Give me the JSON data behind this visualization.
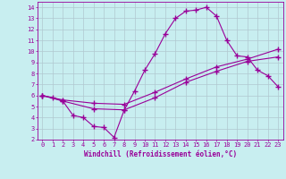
{
  "xlabel": "Windchill (Refroidissement éolien,°C)",
  "bg_color": "#c8eef0",
  "grid_color": "#b0c8d0",
  "line_color": "#990099",
  "xlim": [
    -0.5,
    23.5
  ],
  "ylim": [
    2,
    14.5
  ],
  "xticks": [
    0,
    1,
    2,
    3,
    4,
    5,
    6,
    7,
    8,
    9,
    10,
    11,
    12,
    13,
    14,
    15,
    16,
    17,
    18,
    19,
    20,
    21,
    22,
    23
  ],
  "yticks": [
    2,
    3,
    4,
    5,
    6,
    7,
    8,
    9,
    10,
    11,
    12,
    13,
    14
  ],
  "line1_x": [
    0,
    1,
    2,
    3,
    4,
    5,
    6,
    7,
    8,
    9,
    10,
    11,
    12,
    13,
    14,
    15,
    16,
    17,
    18,
    19,
    20,
    21,
    22,
    23
  ],
  "line1_y": [
    6.0,
    5.8,
    5.5,
    4.2,
    4.0,
    3.2,
    3.1,
    2.2,
    4.7,
    6.4,
    8.3,
    9.8,
    11.6,
    13.0,
    13.65,
    13.75,
    14.0,
    13.2,
    11.0,
    9.6,
    9.5,
    8.3,
    7.8,
    6.8
  ],
  "line2_x": [
    0,
    2,
    5,
    8,
    11,
    14,
    17,
    20,
    23
  ],
  "line2_y": [
    6.0,
    5.6,
    5.3,
    5.2,
    6.3,
    7.5,
    8.6,
    9.3,
    10.2
  ],
  "line3_x": [
    0,
    2,
    5,
    8,
    11,
    14,
    17,
    20,
    23
  ],
  "line3_y": [
    6.0,
    5.5,
    4.8,
    4.7,
    5.8,
    7.2,
    8.2,
    9.1,
    9.5
  ],
  "line_width": 0.8,
  "marker": "+",
  "marker_size": 4,
  "tick_fontsize": 5,
  "label_fontsize": 5.5
}
